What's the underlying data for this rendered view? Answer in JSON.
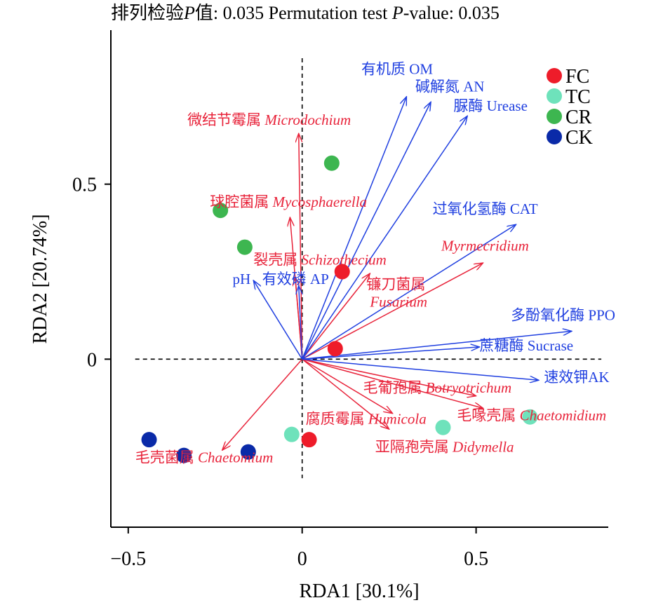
{
  "chart_data": {
    "type": "scatter",
    "title": "排列检验P值: 0.035 Permutation test P-value: 0.035",
    "title_parts": {
      "cn_prefix": "排列检验",
      "p1": "P",
      "cn_suffix": "值: 0.035 Permutation test ",
      "p2": "P",
      "value": "-value: 0.035"
    },
    "xlabel": "RDA1 [30.1%]",
    "ylabel": "RDA2 [20.74%]",
    "xlim": [
      -0.55,
      0.88
    ],
    "ylim": [
      -0.48,
      0.94
    ],
    "xticks": [
      -0.5,
      0,
      0.5
    ],
    "yticks": [
      0,
      0.5
    ],
    "xtick_labels": [
      "−0.5",
      "0",
      "0.5"
    ],
    "ytick_labels": [
      "0",
      "0.5"
    ],
    "grid": false,
    "reference_lines": "dashed lines at x = 0 and y = 0",
    "legend_position": "top-right",
    "legend": [
      {
        "name": "FC",
        "color": "#ee1c2a"
      },
      {
        "name": "TC",
        "color": "#6ee2bb"
      },
      {
        "name": "CR",
        "color": "#3db650"
      },
      {
        "name": "CK",
        "color": "#0a2aa8"
      }
    ],
    "points": [
      {
        "group": "FC",
        "x": 0.115,
        "y": 0.25
      },
      {
        "group": "FC",
        "x": 0.095,
        "y": 0.03
      },
      {
        "group": "FC",
        "x": 0.02,
        "y": -0.23
      },
      {
        "group": "TC",
        "x": -0.03,
        "y": -0.215
      },
      {
        "group": "TC",
        "x": 0.405,
        "y": -0.195
      },
      {
        "group": "TC",
        "x": 0.655,
        "y": -0.165
      },
      {
        "group": "CR",
        "x": 0.085,
        "y": 0.56
      },
      {
        "group": "CR",
        "x": -0.235,
        "y": 0.425
      },
      {
        "group": "CR",
        "x": -0.165,
        "y": 0.32
      },
      {
        "group": "CK",
        "x": -0.44,
        "y": -0.23
      },
      {
        "group": "CK",
        "x": -0.34,
        "y": -0.275
      },
      {
        "group": "CK",
        "x": -0.155,
        "y": -0.265
      }
    ],
    "environment_arrows": [
      {
        "label": "有机质 OM",
        "x": 0.3,
        "y": 0.75,
        "label_x": 0.17,
        "label_y": 0.815
      },
      {
        "label": "碱解氮 AN",
        "x": 0.37,
        "y": 0.735,
        "label_x": 0.325,
        "label_y": 0.765
      },
      {
        "label": "脲酶 Urease",
        "x": 0.475,
        "y": 0.695,
        "label_x": 0.435,
        "label_y": 0.71
      },
      {
        "label": "过氧化氢酶 CAT",
        "x": 0.615,
        "y": 0.385,
        "label_x": 0.375,
        "label_y": 0.415
      },
      {
        "label": "多酚氧化酶 PPO",
        "x": 0.775,
        "y": 0.08,
        "label_x": 0.6,
        "label_y": 0.112
      },
      {
        "label": "蔗糖酶 Sucrase",
        "x": 0.51,
        "y": 0.035,
        "label_x": 0.51,
        "label_y": 0.025
      },
      {
        "label": "速效钾AK",
        "x": 0.68,
        "y": -0.06,
        "label_x": 0.695,
        "label_y": -0.065
      },
      {
        "label": "pH",
        "x": -0.14,
        "y": 0.225,
        "label_x": -0.2,
        "label_y": 0.215
      },
      {
        "label": "有效磷 AP",
        "x": -0.01,
        "y": 0.21,
        "label_x": -0.115,
        "label_y": 0.215
      }
    ],
    "species_arrows": [
      {
        "label_cn": "微结节霉属",
        "label_latin": "Microdochium",
        "x": -0.01,
        "y": 0.645,
        "label_x": -0.33,
        "label_y": 0.67
      },
      {
        "label_cn": "球腔菌属",
        "label_latin": "Mycosphaerella",
        "x": -0.035,
        "y": 0.405,
        "label_x": -0.265,
        "label_y": 0.435
      },
      {
        "label_cn": "裂壳属",
        "label_latin": "Schizothecium",
        "x": -0.02,
        "y": 0.235,
        "label_x": -0.14,
        "label_y": 0.27
      },
      {
        "label_cn": "",
        "label_latin": "Myrmecridium",
        "x": 0.52,
        "y": 0.275,
        "label_x": 0.4,
        "label_y": 0.31
      },
      {
        "label_cn": "镰刀菌属",
        "label_latin": "Fusarium",
        "x": 0.195,
        "y": 0.245,
        "label_x": 0.185,
        "label_y": 0.2,
        "latin_x": 0.195,
        "latin_y": 0.15
      },
      {
        "label_cn": "毛葡孢属",
        "label_latin": "Botryotrichum",
        "x": 0.5,
        "y": -0.105,
        "label_x": 0.175,
        "label_y": -0.095
      },
      {
        "label_cn": "毛喙壳属",
        "label_latin": "Chaetomidium",
        "x": 0.52,
        "y": -0.14,
        "label_x": 0.445,
        "label_y": -0.175
      },
      {
        "label_cn": "腐质霉属",
        "label_latin": "Humicola",
        "x": 0.26,
        "y": -0.155,
        "label_x": 0.01,
        "label_y": -0.185
      },
      {
        "label_cn": "亚隔孢壳属",
        "label_latin": "Didymella",
        "x": 0.25,
        "y": -0.2,
        "label_x": 0.21,
        "label_y": -0.265
      },
      {
        "label_cn": "毛壳菌属",
        "label_latin": "Chaetomium",
        "x": -0.23,
        "y": -0.26,
        "label_x": -0.48,
        "label_y": -0.295
      }
    ]
  }
}
